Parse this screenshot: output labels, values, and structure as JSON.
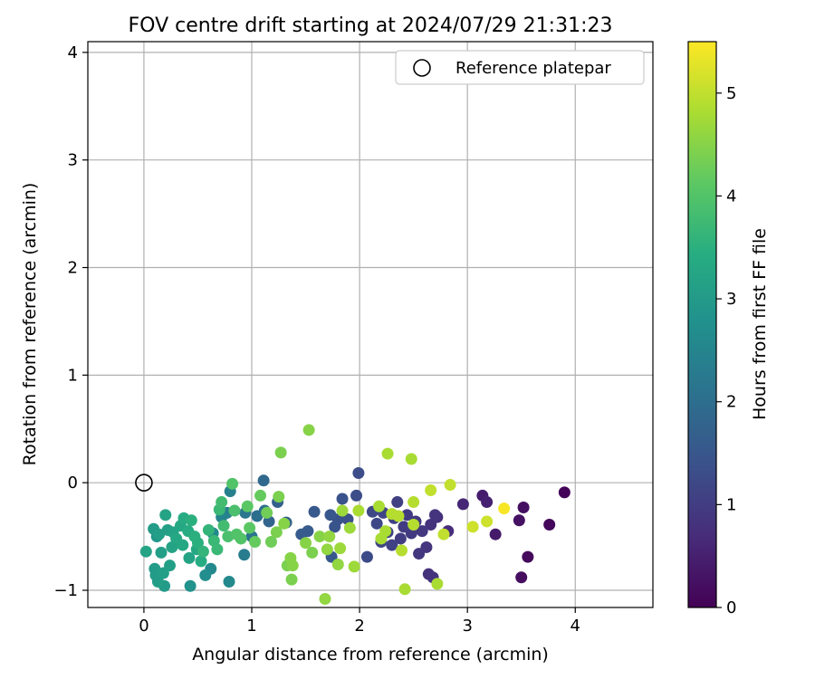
{
  "chart_data": {
    "type": "scatter",
    "title": "FOV centre drift starting at 2024/07/29 21:31:23",
    "xlabel": "Angular distance from reference (arcmin)",
    "ylabel": "Rotation from reference (arcmin)",
    "xlim": [
      -0.52,
      4.72
    ],
    "ylim": [
      -1.16,
      4.1
    ],
    "x_ticks": [
      0,
      1,
      2,
      3,
      4
    ],
    "x_tick_labels": [
      "0",
      "1",
      "2",
      "3",
      "4"
    ],
    "y_ticks": [
      -1,
      0,
      1,
      2,
      3,
      4
    ],
    "y_tick_labels": [
      "−1",
      "0",
      "1",
      "2",
      "3",
      "4"
    ],
    "grid": true,
    "legend": {
      "placement": "top-right",
      "entries": [
        "Reference platepar"
      ]
    },
    "reference_point": {
      "x": 0,
      "y": 0
    },
    "colorbar": {
      "label": "Hours from first FF file",
      "colormap": "viridis",
      "range": [
        0,
        5.5
      ],
      "ticks": [
        0,
        1,
        2,
        3,
        4,
        5
      ],
      "tick_labels": [
        "0",
        "1",
        "2",
        "3",
        "4",
        "5"
      ]
    },
    "series": [
      {
        "points": [
          {
            "x": 3.9,
            "y": -0.09,
            "t": 0.05
          },
          {
            "x": 3.76,
            "y": -0.39,
            "t": 0.1
          },
          {
            "x": 3.56,
            "y": -0.69,
            "t": 0.15
          },
          {
            "x": 3.5,
            "y": -0.88,
            "t": 0.2
          },
          {
            "x": 3.52,
            "y": -0.23,
            "t": 0.22
          },
          {
            "x": 3.48,
            "y": -0.35,
            "t": 0.25
          },
          {
            "x": 3.26,
            "y": -0.48,
            "t": 0.4
          },
          {
            "x": 3.14,
            "y": -0.12,
            "t": 0.45
          },
          {
            "x": 3.18,
            "y": -0.18,
            "t": 0.5
          },
          {
            "x": 2.96,
            "y": -0.2,
            "t": 0.6
          },
          {
            "x": 2.82,
            "y": -0.45,
            "t": 0.7
          },
          {
            "x": 2.72,
            "y": -0.32,
            "t": 0.75
          },
          {
            "x": 2.66,
            "y": -0.39,
            "t": 0.8
          },
          {
            "x": 2.64,
            "y": -0.85,
            "t": 0.8
          },
          {
            "x": 2.68,
            "y": -0.88,
            "t": 0.8
          },
          {
            "x": 2.7,
            "y": -0.3,
            "t": 0.85
          },
          {
            "x": 2.62,
            "y": -0.6,
            "t": 0.85
          },
          {
            "x": 2.58,
            "y": -0.45,
            "t": 0.9
          },
          {
            "x": 2.55,
            "y": -0.66,
            "t": 0.9
          },
          {
            "x": 2.52,
            "y": -0.36,
            "t": 0.9
          },
          {
            "x": 2.48,
            "y": -0.47,
            "t": 0.95
          },
          {
            "x": 2.44,
            "y": -0.3,
            "t": 0.95
          },
          {
            "x": 2.41,
            "y": -0.41,
            "t": 1.0
          },
          {
            "x": 2.38,
            "y": -0.52,
            "t": 1.0
          },
          {
            "x": 2.35,
            "y": -0.18,
            "t": 1.05
          },
          {
            "x": 2.32,
            "y": -0.33,
            "t": 1.05
          },
          {
            "x": 2.3,
            "y": -0.58,
            "t": 1.1
          },
          {
            "x": 2.26,
            "y": -0.46,
            "t": 1.1
          },
          {
            "x": 2.22,
            "y": -0.28,
            "t": 1.15
          },
          {
            "x": 2.2,
            "y": -0.55,
            "t": 1.15
          },
          {
            "x": 2.16,
            "y": -0.38,
            "t": 1.2
          },
          {
            "x": 2.12,
            "y": -0.27,
            "t": 1.2
          },
          {
            "x": 2.07,
            "y": -0.69,
            "t": 1.25
          },
          {
            "x": 1.99,
            "y": 0.09,
            "t": 1.3
          },
          {
            "x": 1.97,
            "y": -0.12,
            "t": 1.3
          },
          {
            "x": 1.89,
            "y": -0.34,
            "t": 1.35
          },
          {
            "x": 1.84,
            "y": -0.15,
            "t": 1.4
          },
          {
            "x": 1.8,
            "y": -0.34,
            "t": 1.4
          },
          {
            "x": 1.77,
            "y": -0.41,
            "t": 1.45
          },
          {
            "x": 1.74,
            "y": -0.69,
            "t": 1.5
          },
          {
            "x": 1.73,
            "y": -0.3,
            "t": 1.5
          },
          {
            "x": 1.58,
            "y": -0.27,
            "t": 1.55
          },
          {
            "x": 1.52,
            "y": -0.45,
            "t": 1.6
          },
          {
            "x": 1.46,
            "y": -0.48,
            "t": 1.6
          },
          {
            "x": 1.32,
            "y": -0.37,
            "t": 1.7
          },
          {
            "x": 1.24,
            "y": -0.18,
            "t": 1.7
          },
          {
            "x": 1.16,
            "y": -0.36,
            "t": 1.8
          },
          {
            "x": 1.11,
            "y": 0.02,
            "t": 1.9
          },
          {
            "x": 1.12,
            "y": -0.26,
            "t": 2.0
          },
          {
            "x": 1.05,
            "y": -0.31,
            "t": 2.0
          },
          {
            "x": 1.0,
            "y": -0.5,
            "t": 2.1
          },
          {
            "x": 0.94,
            "y": -0.28,
            "t": 2.2
          },
          {
            "x": 0.93,
            "y": -0.67,
            "t": 2.3
          },
          {
            "x": 0.8,
            "y": -0.08,
            "t": 2.4
          },
          {
            "x": 0.77,
            "y": -0.28,
            "t": 2.4
          },
          {
            "x": 0.72,
            "y": -0.32,
            "t": 2.5
          },
          {
            "x": 0.64,
            "y": -0.47,
            "t": 2.6
          },
          {
            "x": 0.62,
            "y": -0.8,
            "t": 2.6
          },
          {
            "x": 0.57,
            "y": -0.86,
            "t": 2.7
          },
          {
            "x": 0.79,
            "y": -0.92,
            "t": 2.6
          },
          {
            "x": 0.43,
            "y": -0.96,
            "t": 2.8
          },
          {
            "x": 0.19,
            "y": -0.96,
            "t": 3.0
          },
          {
            "x": 0.13,
            "y": -0.92,
            "t": 3.1
          },
          {
            "x": 0.1,
            "y": -0.8,
            "t": 3.0
          },
          {
            "x": 0.11,
            "y": -0.86,
            "t": 3.0
          },
          {
            "x": 0.18,
            "y": -0.84,
            "t": 3.1
          },
          {
            "x": 0.24,
            "y": -0.77,
            "t": 3.1
          },
          {
            "x": 0.02,
            "y": -0.64,
            "t": 3.2
          },
          {
            "x": 0.16,
            "y": -0.65,
            "t": 3.1
          },
          {
            "x": 0.26,
            "y": -0.6,
            "t": 3.2
          },
          {
            "x": 0.36,
            "y": -0.58,
            "t": 3.3
          },
          {
            "x": 0.42,
            "y": -0.7,
            "t": 3.2
          },
          {
            "x": 0.49,
            "y": -0.62,
            "t": 3.3
          },
          {
            "x": 0.53,
            "y": -0.73,
            "t": 3.4
          },
          {
            "x": 0.12,
            "y": -0.5,
            "t": 2.9
          },
          {
            "x": 0.09,
            "y": -0.43,
            "t": 3.0
          },
          {
            "x": 0.14,
            "y": -0.48,
            "t": 3.1
          },
          {
            "x": 0.2,
            "y": -0.3,
            "t": 3.2
          },
          {
            "x": 0.22,
            "y": -0.44,
            "t": 3.1
          },
          {
            "x": 0.27,
            "y": -0.46,
            "t": 3.2
          },
          {
            "x": 0.3,
            "y": -0.52,
            "t": 3.3
          },
          {
            "x": 0.34,
            "y": -0.4,
            "t": 3.3
          },
          {
            "x": 0.37,
            "y": -0.33,
            "t": 3.4
          },
          {
            "x": 0.41,
            "y": -0.45,
            "t": 3.4
          },
          {
            "x": 0.44,
            "y": -0.35,
            "t": 3.5
          },
          {
            "x": 0.47,
            "y": -0.5,
            "t": 3.5
          },
          {
            "x": 0.5,
            "y": -0.56,
            "t": 3.5
          },
          {
            "x": 0.55,
            "y": -0.64,
            "t": 3.6
          },
          {
            "x": 0.6,
            "y": -0.44,
            "t": 3.6
          },
          {
            "x": 0.65,
            "y": -0.54,
            "t": 3.7
          },
          {
            "x": 0.68,
            "y": -0.62,
            "t": 3.7
          },
          {
            "x": 0.7,
            "y": -0.25,
            "t": 3.7
          },
          {
            "x": 0.72,
            "y": -0.18,
            "t": 3.8
          },
          {
            "x": 0.74,
            "y": -0.4,
            "t": 3.8
          },
          {
            "x": 0.78,
            "y": -0.5,
            "t": 3.9
          },
          {
            "x": 0.82,
            "y": -0.01,
            "t": 4.0
          },
          {
            "x": 0.84,
            "y": -0.26,
            "t": 3.9
          },
          {
            "x": 0.86,
            "y": -0.48,
            "t": 4.0
          },
          {
            "x": 0.9,
            "y": -0.52,
            "t": 4.0
          },
          {
            "x": 0.96,
            "y": -0.22,
            "t": 4.1
          },
          {
            "x": 0.98,
            "y": -0.42,
            "t": 4.1
          },
          {
            "x": 1.03,
            "y": -0.55,
            "t": 4.2
          },
          {
            "x": 1.08,
            "y": -0.12,
            "t": 4.2
          },
          {
            "x": 1.14,
            "y": -0.28,
            "t": 4.3
          },
          {
            "x": 1.18,
            "y": -0.55,
            "t": 4.3
          },
          {
            "x": 1.23,
            "y": -0.46,
            "t": 4.4
          },
          {
            "x": 1.27,
            "y": 0.28,
            "t": 4.4
          },
          {
            "x": 1.25,
            "y": -0.13,
            "t": 4.4
          },
          {
            "x": 1.3,
            "y": -0.38,
            "t": 4.5
          },
          {
            "x": 1.33,
            "y": -0.77,
            "t": 4.4
          },
          {
            "x": 1.36,
            "y": -0.7,
            "t": 4.5
          },
          {
            "x": 1.37,
            "y": -0.9,
            "t": 4.4
          },
          {
            "x": 1.38,
            "y": -0.77,
            "t": 4.5
          },
          {
            "x": 1.53,
            "y": 0.49,
            "t": 4.5
          },
          {
            "x": 1.5,
            "y": -0.56,
            "t": 4.5
          },
          {
            "x": 1.56,
            "y": -0.65,
            "t": 4.4
          },
          {
            "x": 1.63,
            "y": -0.5,
            "t": 4.5
          },
          {
            "x": 1.68,
            "y": -1.08,
            "t": 4.6
          },
          {
            "x": 1.7,
            "y": -0.62,
            "t": 4.6
          },
          {
            "x": 1.72,
            "y": -0.5,
            "t": 4.6
          },
          {
            "x": 1.8,
            "y": -0.76,
            "t": 4.6
          },
          {
            "x": 1.82,
            "y": -0.61,
            "t": 4.7
          },
          {
            "x": 1.84,
            "y": -0.26,
            "t": 4.7
          },
          {
            "x": 1.91,
            "y": -0.42,
            "t": 4.7
          },
          {
            "x": 1.95,
            "y": -0.78,
            "t": 4.7
          },
          {
            "x": 1.99,
            "y": -0.26,
            "t": 4.8
          },
          {
            "x": 2.18,
            "y": -0.22,
            "t": 4.8
          },
          {
            "x": 2.2,
            "y": -0.52,
            "t": 4.8
          },
          {
            "x": 2.24,
            "y": -0.45,
            "t": 4.8
          },
          {
            "x": 2.26,
            "y": 0.27,
            "t": 4.8
          },
          {
            "x": 2.3,
            "y": -0.29,
            "t": 4.9
          },
          {
            "x": 2.36,
            "y": -0.31,
            "t": 4.9
          },
          {
            "x": 2.39,
            "y": -0.63,
            "t": 4.9
          },
          {
            "x": 2.42,
            "y": -0.99,
            "t": 4.8
          },
          {
            "x": 2.48,
            "y": 0.22,
            "t": 4.8
          },
          {
            "x": 2.5,
            "y": -0.18,
            "t": 4.9
          },
          {
            "x": 2.5,
            "y": -0.39,
            "t": 4.9
          },
          {
            "x": 2.66,
            "y": -0.07,
            "t": 5.0
          },
          {
            "x": 2.72,
            "y": -0.94,
            "t": 4.8
          },
          {
            "x": 2.78,
            "y": -0.48,
            "t": 5.0
          },
          {
            "x": 2.84,
            "y": -0.02,
            "t": 5.0
          },
          {
            "x": 3.05,
            "y": -0.41,
            "t": 5.1
          },
          {
            "x": 3.18,
            "y": -0.36,
            "t": 5.1
          },
          {
            "x": 3.34,
            "y": -0.24,
            "t": 5.45
          }
        ]
      }
    ]
  }
}
